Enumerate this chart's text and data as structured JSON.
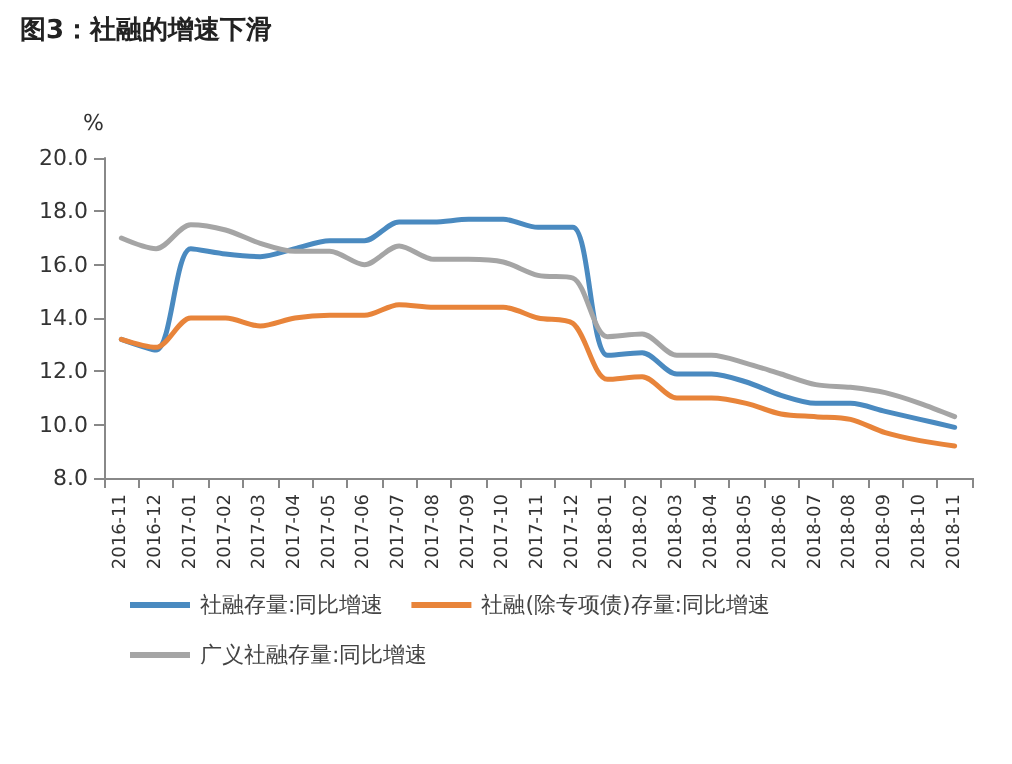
{
  "chart_data": {
    "type": "line",
    "title": "图3：社融的增速下滑",
    "ylabel": "%",
    "categories": [
      "2016-11",
      "2016-12",
      "2017-01",
      "2017-02",
      "2017-03",
      "2017-04",
      "2017-05",
      "2017-06",
      "2017-07",
      "2017-08",
      "2017-09",
      "2017-10",
      "2017-11",
      "2017-12",
      "2018-01",
      "2018-02",
      "2018-03",
      "2018-04",
      "2018-05",
      "2018-06",
      "2018-07",
      "2018-08",
      "2018-09",
      "2018-10",
      "2018-11"
    ],
    "series": [
      {
        "name": "社融存量:同比增速",
        "color": "#4a8ac0",
        "values": [
          13.2,
          12.8,
          16.6,
          16.4,
          16.3,
          16.6,
          16.9,
          16.9,
          17.6,
          17.6,
          17.7,
          17.7,
          17.4,
          17.4,
          12.6,
          12.7,
          11.9,
          11.9,
          11.6,
          11.1,
          10.8,
          10.8,
          10.5,
          10.2,
          9.9
        ]
      },
      {
        "name": "社融(除专项债)存量:同比增速",
        "color": "#e8843a",
        "values": [
          13.2,
          12.9,
          14.0,
          14.0,
          13.7,
          14.0,
          14.1,
          14.1,
          14.5,
          14.4,
          14.4,
          14.4,
          14.0,
          13.8,
          11.7,
          11.8,
          11.0,
          11.0,
          10.8,
          10.4,
          10.3,
          10.2,
          9.7,
          9.4,
          9.2
        ]
      },
      {
        "name": "广义社融存量:同比增速",
        "color": "#a5a5a5",
        "values": [
          17.0,
          16.6,
          17.5,
          17.3,
          16.8,
          16.5,
          16.5,
          16.0,
          16.7,
          16.2,
          16.2,
          16.1,
          15.6,
          15.5,
          13.3,
          13.4,
          12.6,
          12.6,
          12.3,
          11.9,
          11.5,
          11.4,
          11.2,
          10.8,
          10.3
        ]
      }
    ],
    "ylim": [
      8,
      20
    ],
    "yticks": [
      {
        "value": 8,
        "label": "8.0"
      },
      {
        "value": 10,
        "label": "10.0"
      },
      {
        "value": 12,
        "label": "12.0"
      },
      {
        "value": 14,
        "label": "14.0"
      },
      {
        "value": 16,
        "label": "16.0"
      },
      {
        "value": 18,
        "label": "18.0"
      },
      {
        "value": 20,
        "label": "20.0"
      }
    ],
    "grid": false,
    "legend": "bottom",
    "marker": "none",
    "line_style": "solid"
  }
}
